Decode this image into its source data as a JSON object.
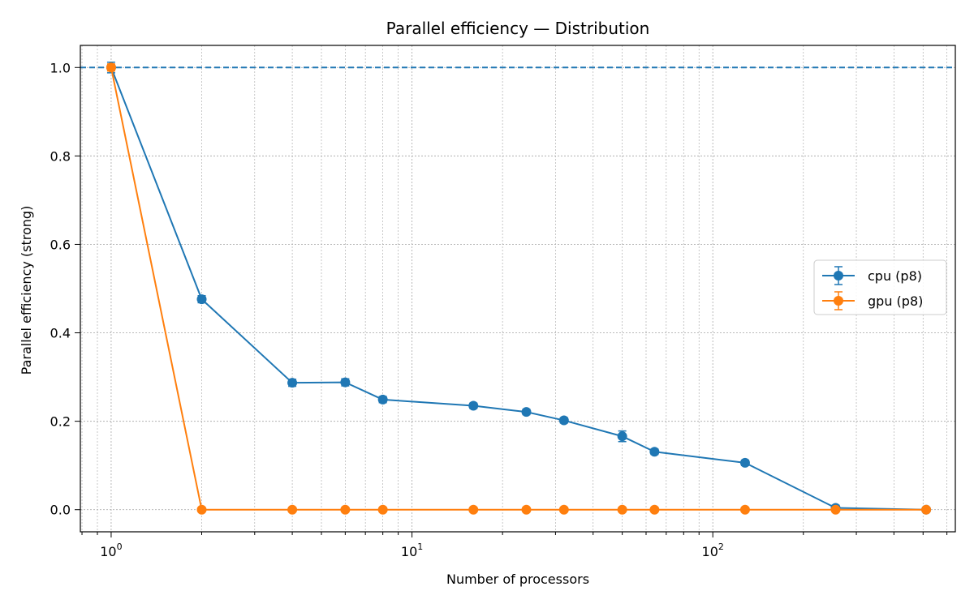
{
  "chart_data": {
    "type": "line",
    "title": "Parallel efficiency — Distribution",
    "xlabel": "Number of processors",
    "ylabel": "Parallel efficiency (strong)",
    "xscale": "log",
    "xlim": [
      0.79,
      640
    ],
    "ylim": [
      -0.05,
      1.05
    ],
    "grid": true,
    "legend_position": "center-right",
    "y_ticks": [
      0.0,
      0.2,
      0.4,
      0.6,
      0.8,
      1.0
    ],
    "y_tick_labels": [
      "0.0",
      "0.2",
      "0.4",
      "0.6",
      "0.8",
      "1.0"
    ],
    "x_tick_labels": [
      {
        "base": "10",
        "exp": "0",
        "value": 1
      },
      {
        "base": "10",
        "exp": "1",
        "value": 10
      },
      {
        "base": "10",
        "exp": "2",
        "value": 100
      }
    ],
    "reference_line": {
      "y": 1.0,
      "style": "dashed",
      "color": "#1f77b4"
    },
    "series": [
      {
        "name": "cpu (p8)",
        "color": "#1f77b4",
        "x": [
          1,
          2,
          4,
          6,
          8,
          16,
          24,
          32,
          50,
          64,
          128,
          256,
          512
        ],
        "y": [
          1.0,
          0.476,
          0.287,
          0.288,
          0.249,
          0.235,
          0.221,
          0.202,
          0.166,
          0.131,
          0.106,
          0.004,
          0.0
        ],
        "err": [
          0.012,
          0.008,
          0.008,
          0.008,
          0.007,
          0.006,
          0.006,
          0.006,
          0.012,
          0.006,
          0.006,
          0.006,
          0.004
        ]
      },
      {
        "name": "gpu (p8)",
        "color": "#ff7f0e",
        "x": [
          1,
          2,
          4,
          6,
          8,
          16,
          24,
          32,
          50,
          64,
          128,
          256,
          512
        ],
        "y": [
          1.0,
          0.0,
          0.0,
          0.0,
          0.0,
          0.0,
          0.0,
          0.0,
          0.0,
          0.0,
          0.0,
          0.0,
          0.0
        ],
        "err": [
          0.008,
          0.003,
          0.003,
          0.003,
          0.003,
          0.003,
          0.003,
          0.003,
          0.003,
          0.003,
          0.003,
          0.003,
          0.003
        ]
      }
    ]
  }
}
